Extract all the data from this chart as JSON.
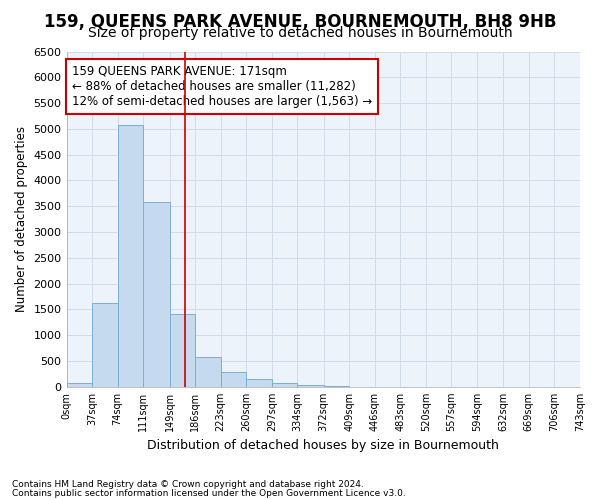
{
  "title1": "159, QUEENS PARK AVENUE, BOURNEMOUTH, BH8 9HB",
  "title2": "Size of property relative to detached houses in Bournemouth",
  "xlabel": "Distribution of detached houses by size in Bournemouth",
  "ylabel": "Number of detached properties",
  "footnote1": "Contains HM Land Registry data © Crown copyright and database right 2024.",
  "footnote2": "Contains public sector information licensed under the Open Government Licence v3.0.",
  "annotation_line1": "159 QUEENS PARK AVENUE: 171sqm",
  "annotation_line2": "← 88% of detached houses are smaller (11,282)",
  "annotation_line3": "12% of semi-detached houses are larger (1,563) →",
  "property_size": 171,
  "bin_edges": [
    0,
    37,
    74,
    111,
    149,
    186,
    223,
    260,
    297,
    334,
    372,
    409,
    446,
    483,
    520,
    557,
    594,
    632,
    669,
    706,
    743
  ],
  "bar_heights": [
    75,
    1630,
    5080,
    3580,
    1420,
    580,
    290,
    145,
    80,
    40,
    15,
    5,
    2,
    0,
    0,
    0,
    0,
    0,
    0,
    0
  ],
  "bar_color": "#c5d9ef",
  "bar_edge_color": "#7bafd4",
  "vline_color": "#cc0000",
  "vline_x": 171,
  "ylim": [
    0,
    6500
  ],
  "yticks": [
    0,
    500,
    1000,
    1500,
    2000,
    2500,
    3000,
    3500,
    4000,
    4500,
    5000,
    5500,
    6000,
    6500
  ],
  "grid_color": "#d0dde8",
  "background_color": "#ffffff",
  "plot_bg_color": "#edf3fa",
  "title1_fontsize": 12,
  "title2_fontsize": 10,
  "title1_bold": true,
  "title2_bold": false
}
